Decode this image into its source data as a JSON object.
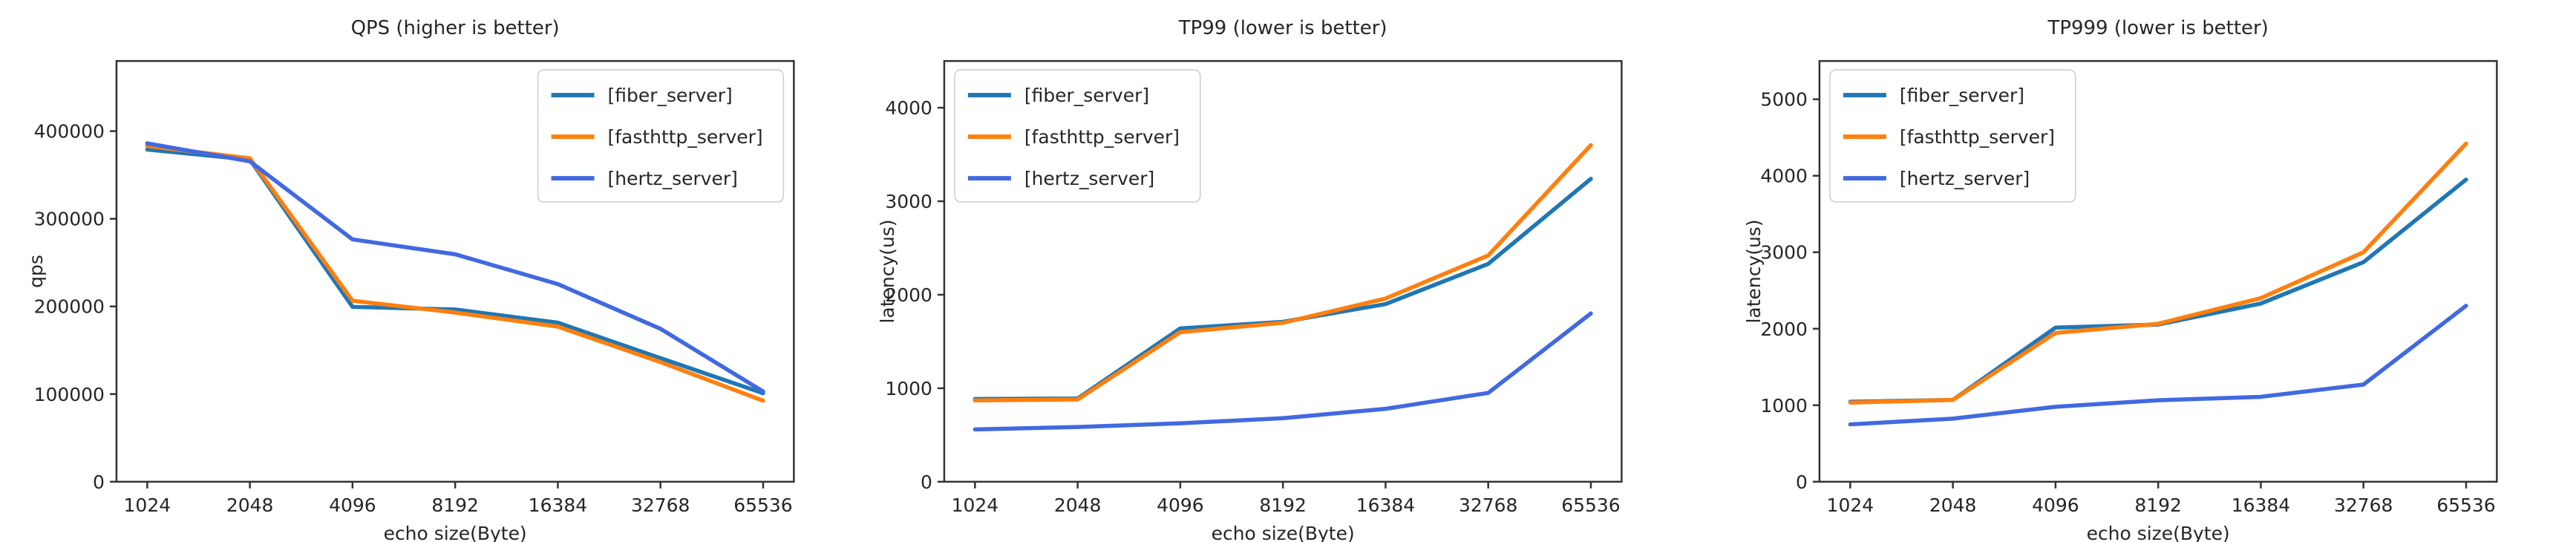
{
  "figure": {
    "background": "#ffffff",
    "text_color": "#262626",
    "spine_color": "#333333",
    "legend_border_color": "#cccccc",
    "x_axis_label": "echo size(Byte)",
    "x_categories": [
      "1024",
      "2048",
      "4096",
      "8192",
      "16384",
      "32768",
      "65536"
    ]
  },
  "chart_data": [
    {
      "type": "line",
      "title": "QPS (higher is better)",
      "xlabel": "echo size(Byte)",
      "ylabel": "qps",
      "categories": [
        "1024",
        "2048",
        "4096",
        "8192",
        "16384",
        "32768",
        "65536"
      ],
      "yticks": [
        0,
        100000,
        200000,
        300000,
        400000
      ],
      "ylim": [
        0,
        480000
      ],
      "grid": false,
      "legend_position": "top-right",
      "series": [
        {
          "name": "[fiber_server]",
          "color": "#1f77b4",
          "values": [
            379000,
            367500,
            199500,
            196500,
            181500,
            141000,
            101000
          ]
        },
        {
          "name": "[fasthttp_server]",
          "color": "#ff7f0e",
          "values": [
            383000,
            369000,
            206500,
            193000,
            177000,
            136500,
            92500
          ]
        },
        {
          "name": "[hertz_server]",
          "color": "#4169e1",
          "values": [
            386000,
            365500,
            276500,
            259500,
            225500,
            174500,
            103000
          ]
        }
      ],
      "layout": {
        "axes": {
          "left": 157,
          "right": 1070,
          "top": 82,
          "bottom": 649
        },
        "ylabel_x": 57
      }
    },
    {
      "type": "line",
      "title": "TP99 (lower is better)",
      "xlabel": "echo size(Byte)",
      "ylabel": "latency(us)",
      "categories": [
        "1024",
        "2048",
        "4096",
        "8192",
        "16384",
        "32768",
        "65536"
      ],
      "yticks": [
        0,
        1000,
        2000,
        3000,
        4000
      ],
      "ylim": [
        0,
        4500
      ],
      "grid": false,
      "legend_position": "top-left",
      "series": [
        {
          "name": "[fiber_server]",
          "color": "#1f77b4",
          "values": [
            885,
            890,
            1640,
            1710,
            1900,
            2330,
            3240
          ]
        },
        {
          "name": "[fasthttp_server]",
          "color": "#ff7f0e",
          "values": [
            870,
            880,
            1600,
            1700,
            1960,
            2420,
            3600
          ]
        },
        {
          "name": "[hertz_server]",
          "color": "#4169e1",
          "values": [
            560,
            585,
            625,
            680,
            780,
            950,
            1800
          ]
        }
      ],
      "layout": {
        "axes": {
          "left": 116,
          "right": 1029,
          "top": 82,
          "bottom": 649
        },
        "ylabel_x": 48
      }
    },
    {
      "type": "line",
      "title": "TP999 (lower is better)",
      "xlabel": "echo size(Byte)",
      "ylabel": "latency(us)",
      "categories": [
        "1024",
        "2048",
        "4096",
        "8192",
        "16384",
        "32768",
        "65536"
      ],
      "yticks": [
        0,
        1000,
        2000,
        3000,
        4000,
        5000
      ],
      "ylim": [
        0,
        5500
      ],
      "grid": false,
      "legend_position": "top-left",
      "series": [
        {
          "name": "[fiber_server]",
          "color": "#1f77b4",
          "values": [
            1045,
            1070,
            2015,
            2055,
            2330,
            2870,
            3950
          ]
        },
        {
          "name": "[fasthttp_server]",
          "color": "#ff7f0e",
          "values": [
            1035,
            1070,
            1945,
            2065,
            2400,
            3000,
            4420
          ]
        },
        {
          "name": "[hertz_server]",
          "color": "#4169e1",
          "values": [
            750,
            825,
            980,
            1065,
            1110,
            1270,
            2300
          ]
        }
      ],
      "layout": {
        "axes": {
          "left": 139,
          "right": 1052,
          "top": 82,
          "bottom": 649
        },
        "ylabel_x": 59
      }
    }
  ]
}
